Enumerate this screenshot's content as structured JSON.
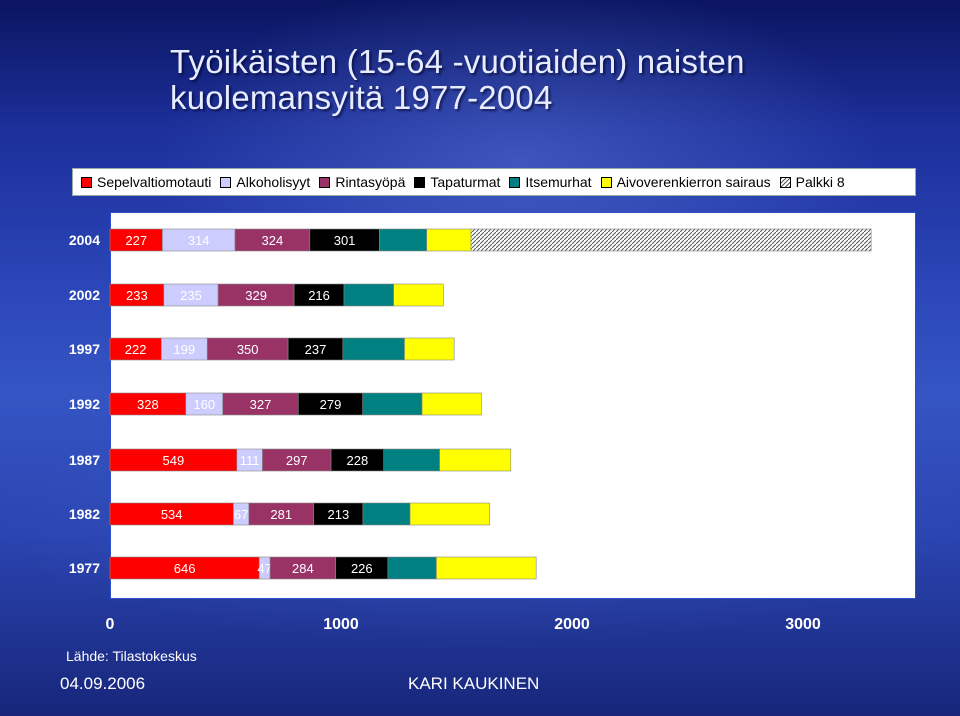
{
  "title": "Työikäisten (15-64 -vuotiaiden) naisten kuolemansyitä 1977-2004",
  "source": "Lähde: Tilastokeskus",
  "date": "04.09.2006",
  "author": "KARI KAUKINEN",
  "chart_data": {
    "type": "bar",
    "orientation": "horizontal",
    "stacked": true,
    "categories": [
      "2004",
      "2002",
      "1997",
      "1992",
      "1987",
      "1982",
      "1977"
    ],
    "series": [
      {
        "name": "Sepelvaltiomotauti",
        "color": "#ff0000",
        "values": [
          227,
          233,
          222,
          328,
          549,
          534,
          646
        ]
      },
      {
        "name": "Alkoholisyyt",
        "color": "#ccccff",
        "values": [
          314,
          235,
          199,
          160,
          111,
          67,
          47
        ]
      },
      {
        "name": "Rintasyöpä",
        "color": "#993366",
        "values": [
          324,
          329,
          350,
          327,
          297,
          281,
          284
        ]
      },
      {
        "name": "Tapaturmat",
        "color": "#000000",
        "values": [
          301,
          216,
          237,
          279,
          228,
          213,
          226
        ]
      },
      {
        "name": "Itsemurhat",
        "color": "#008080",
        "values": [
          205,
          215,
          267,
          257,
          242,
          204,
          210
        ]
      },
      {
        "name": "Aivoverenkierron sairaus",
        "color": "#ffff00",
        "values": [
          192,
          215,
          215,
          257,
          308,
          345,
          432
        ]
      },
      {
        "name": "Palkki 8",
        "color": "#c0c0c0",
        "pattern": "diagonal",
        "values": [
          1732,
          0,
          0,
          0,
          0,
          0,
          0
        ]
      }
    ],
    "data_labels": {
      "Sepelvaltiomotauti": [
        "227",
        "233",
        "222",
        "328",
        "549",
        "534",
        "646"
      ],
      "Alkoholisyyt": [
        "314",
        "235",
        "199",
        "160",
        "111",
        "67",
        "47"
      ],
      "Rintasyöpä": [
        "324",
        "329",
        "350",
        "327",
        "297",
        "281",
        "284"
      ],
      "Tapaturmat": [
        "301",
        "216",
        "237",
        "279",
        "228",
        "213",
        "226"
      ]
    },
    "xlim": [
      0,
      3500
    ],
    "xticks": [
      "0",
      "1000",
      "2000",
      "3000"
    ],
    "legend": "top",
    "grid": false
  }
}
